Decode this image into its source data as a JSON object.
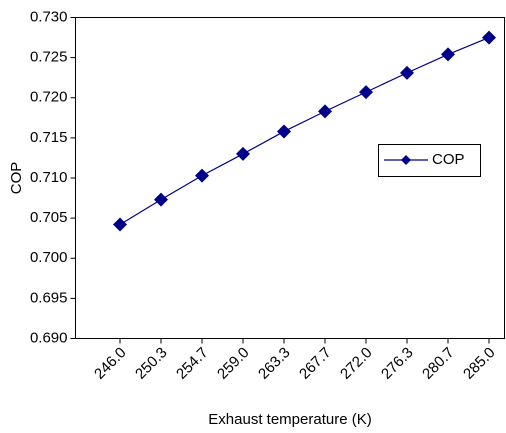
{
  "chart_data": {
    "type": "line",
    "x_label": "Exhaust temperature (K)",
    "y_label": "COP",
    "categories": [
      "246.0",
      "250.3",
      "254.7",
      "259.0",
      "263.3",
      "267.7",
      "272.0",
      "276.3",
      "280.7",
      "285.0"
    ],
    "series": [
      {
        "name": "COP",
        "color": "#00008b",
        "values": [
          0.7042,
          0.7073,
          0.7103,
          0.713,
          0.7158,
          0.7183,
          0.7207,
          0.7231,
          0.7254,
          0.7275
        ]
      }
    ],
    "ylim": [
      0.69,
      0.73
    ],
    "yticks": [
      {
        "value": 0.69,
        "label": "0.690"
      },
      0.695,
      {
        "value": 0.7,
        "label": "0.700"
      },
      0.705,
      {
        "value": 0.71,
        "label": "0.710"
      },
      0.715,
      {
        "value": 0.72,
        "label": "0.720"
      },
      0.725,
      {
        "value": 0.73,
        "label": "0.730"
      }
    ],
    "grid": false,
    "legend": "right"
  }
}
